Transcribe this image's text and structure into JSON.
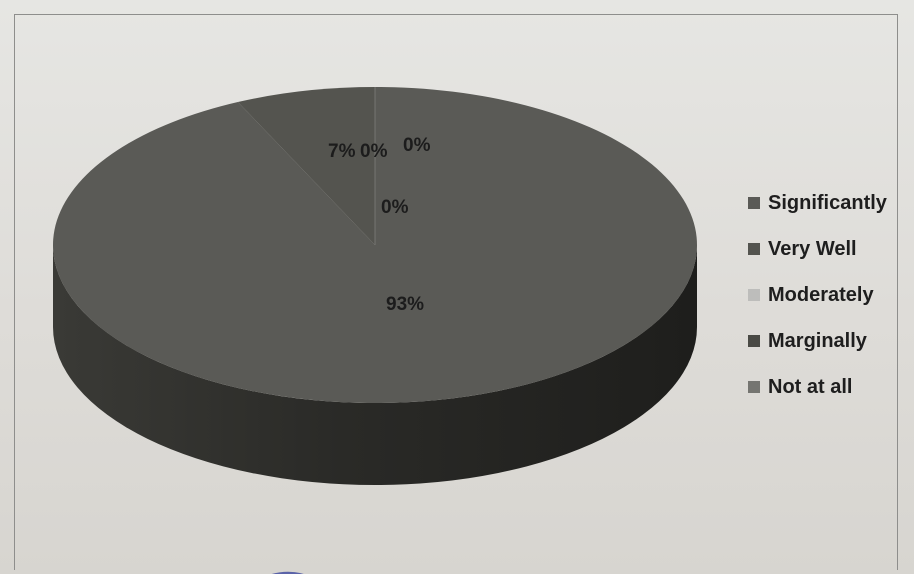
{
  "colors": {
    "significantly": "#5a5a56",
    "very_well": "#54544f",
    "moderately": "#bdbdbb",
    "marginally": "#4a4a45",
    "not_at_all": "#757571",
    "side_dark": "#2e2e2b"
  },
  "chart_data": {
    "type": "pie",
    "three_d": true,
    "categories": [
      "Significantly",
      "Very Well",
      "Moderately",
      "Marginally",
      "Not at all"
    ],
    "values": [
      93,
      7,
      0,
      0,
      0
    ],
    "data_labels": [
      "93%",
      "7%",
      "0%",
      "0%",
      "0%"
    ],
    "legend_position": "right",
    "legend": [
      "Significantly",
      "Very Well",
      "Moderately",
      "Marginally",
      "Not at all"
    ]
  }
}
